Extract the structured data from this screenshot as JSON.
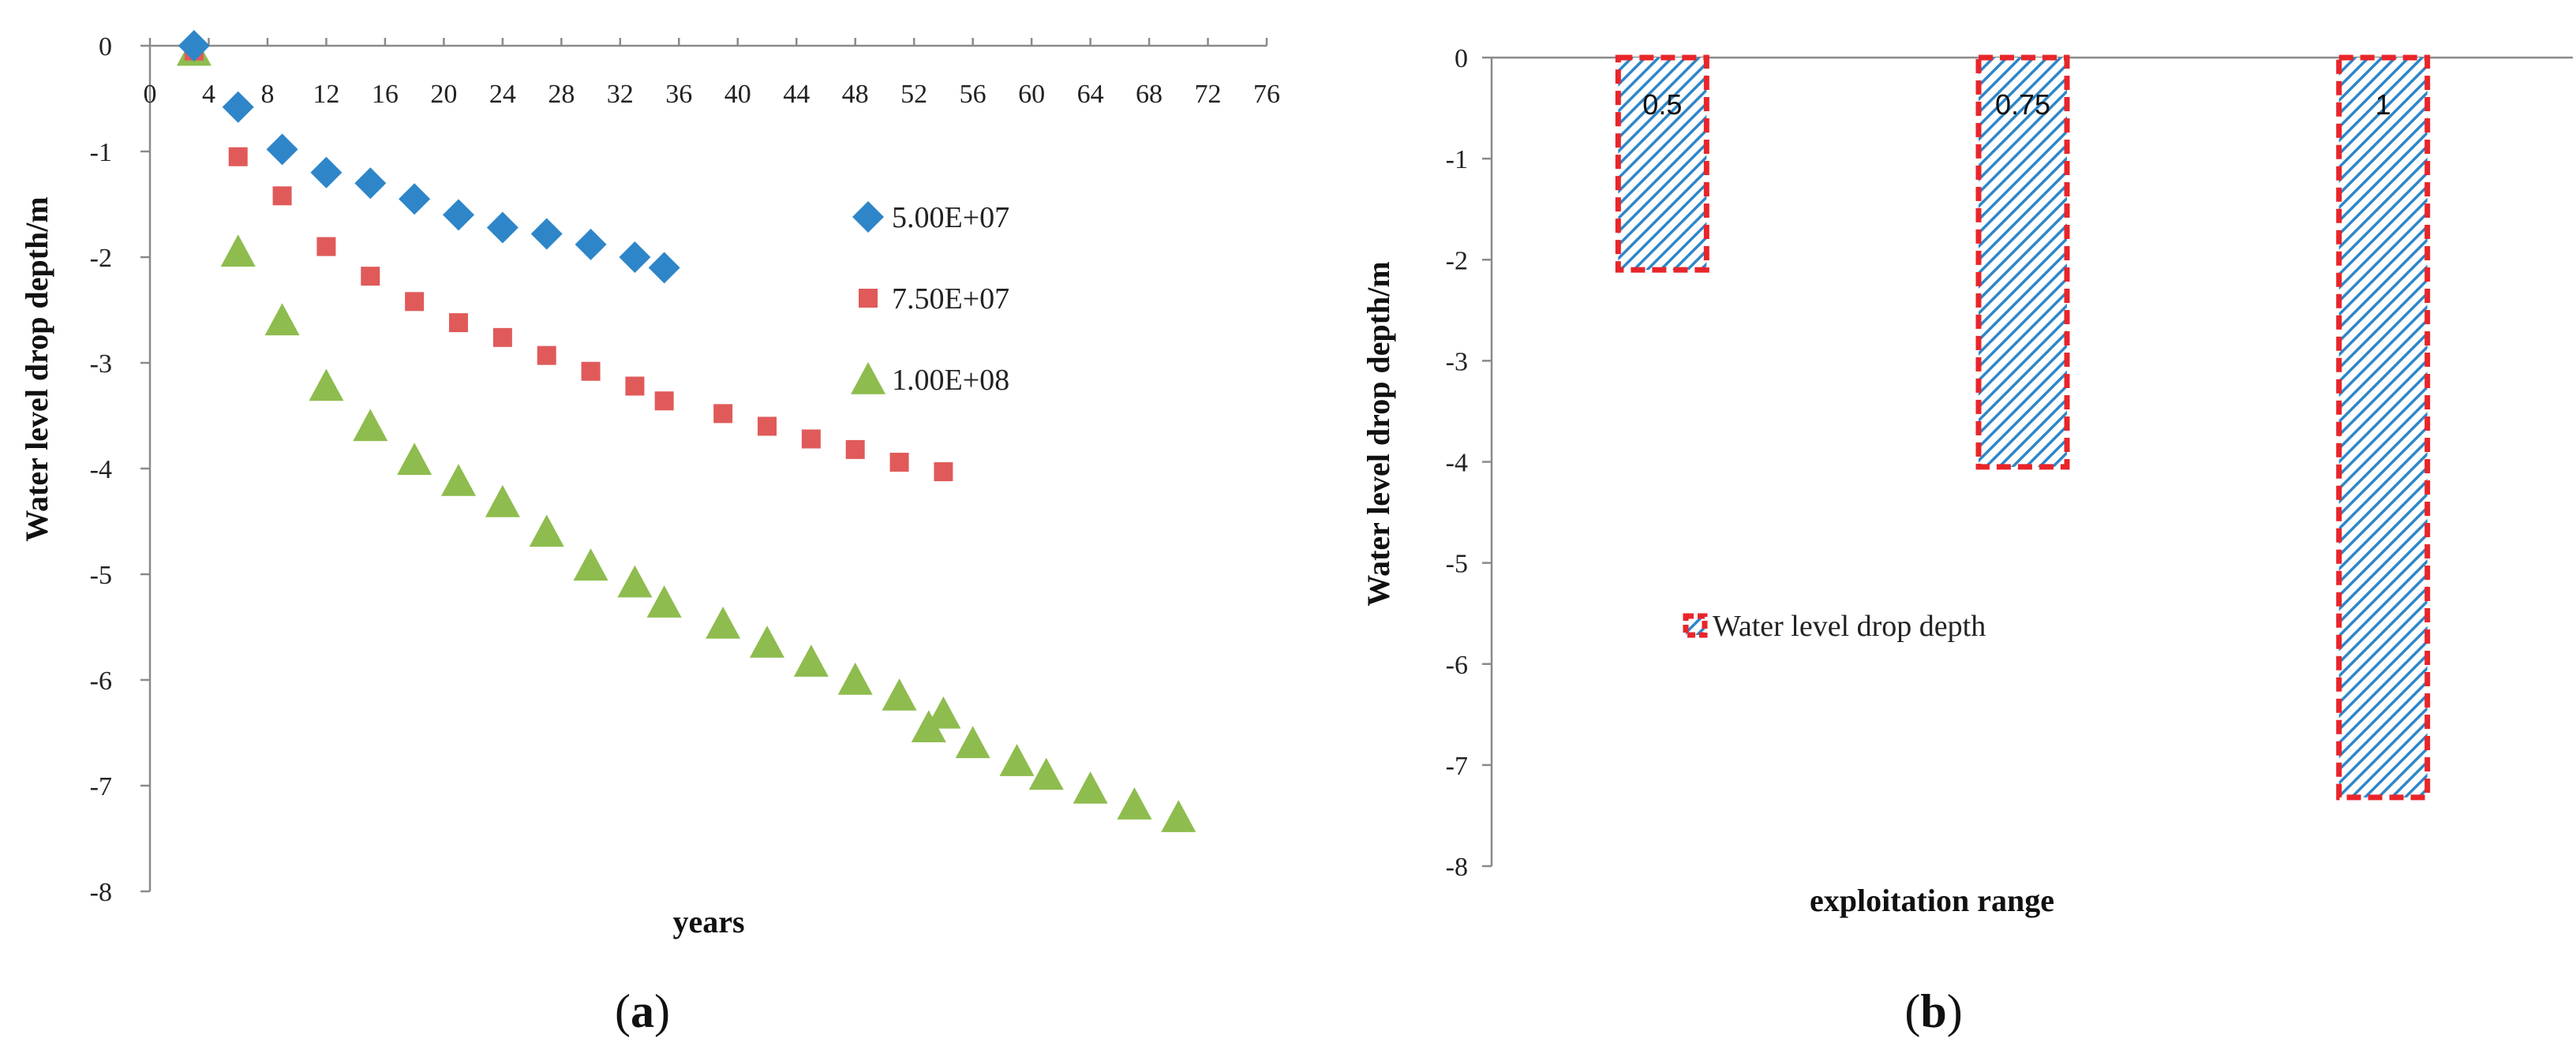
{
  "chart_data": [
    {
      "type": "scatter",
      "panel_label": "a",
      "title": "",
      "xlabel": "years",
      "ylabel": "Water level drop depth/m",
      "xlim": [
        0,
        76
      ],
      "ylim": [
        -8,
        0
      ],
      "x_ticks": [
        0,
        4,
        8,
        12,
        16,
        20,
        24,
        28,
        32,
        36,
        40,
        44,
        48,
        52,
        56,
        60,
        64,
        68,
        72,
        76
      ],
      "y_ticks": [
        0,
        -1,
        -2,
        -3,
        -4,
        -5,
        -6,
        -7,
        -8
      ],
      "legend_position": "right",
      "series": [
        {
          "name": "5.00E+07",
          "marker": "diamond",
          "color": "#2e86c8",
          "x": [
            3,
            6,
            9,
            12,
            15,
            18,
            21,
            24,
            27,
            30,
            33,
            35
          ],
          "y": [
            0,
            -0.58,
            -0.98,
            -1.2,
            -1.3,
            -1.45,
            -1.6,
            -1.72,
            -1.78,
            -1.88,
            -2.0,
            -2.1
          ]
        },
        {
          "name": "7.50E+07",
          "marker": "square",
          "color": "#e05a5a",
          "x": [
            3,
            6,
            9,
            12,
            15,
            18,
            21,
            24,
            27,
            30,
            33,
            35,
            39,
            42,
            45,
            48,
            51,
            54
          ],
          "y": [
            -0.05,
            -1.05,
            -1.42,
            -1.9,
            -2.18,
            -2.42,
            -2.62,
            -2.76,
            -2.93,
            -3.08,
            -3.22,
            -3.36,
            -3.48,
            -3.6,
            -3.72,
            -3.82,
            -3.94,
            -4.03
          ]
        },
        {
          "name": "1.00E+08",
          "marker": "triangle",
          "color": "#8ebc4e",
          "x": [
            3,
            6,
            9,
            12,
            15,
            18,
            21,
            24,
            27,
            30,
            33,
            35,
            39,
            42,
            45,
            48,
            51,
            53,
            54,
            56,
            59,
            61,
            64,
            67,
            70
          ],
          "y": [
            -0.05,
            -1.95,
            -2.6,
            -3.22,
            -3.6,
            -3.92,
            -4.12,
            -4.32,
            -4.6,
            -4.92,
            -5.08,
            -5.27,
            -5.47,
            -5.65,
            -5.83,
            -6.0,
            -6.15,
            -6.45,
            -6.32,
            -6.6,
            -6.77,
            -6.9,
            -7.03,
            -7.18,
            -7.3
          ]
        }
      ]
    },
    {
      "type": "bar",
      "panel_label": "b",
      "title": "",
      "xlabel": "exploitation range",
      "ylabel": "Water level drop depth/m",
      "ylim": [
        -8,
        0
      ],
      "y_ticks": [
        0,
        -1,
        -2,
        -3,
        -4,
        -5,
        -6,
        -7,
        -8
      ],
      "categories": [
        "0.5",
        "0.75",
        "1"
      ],
      "series": [
        {
          "name": "Water level drop depth",
          "values": [
            -2.1,
            -4.05,
            -7.32
          ],
          "fill": "#2e86c8",
          "border": "#e8252a"
        }
      ],
      "data_labels": [
        "0.5",
        "0.75",
        "1"
      ],
      "legend_position": "center-left"
    }
  ]
}
